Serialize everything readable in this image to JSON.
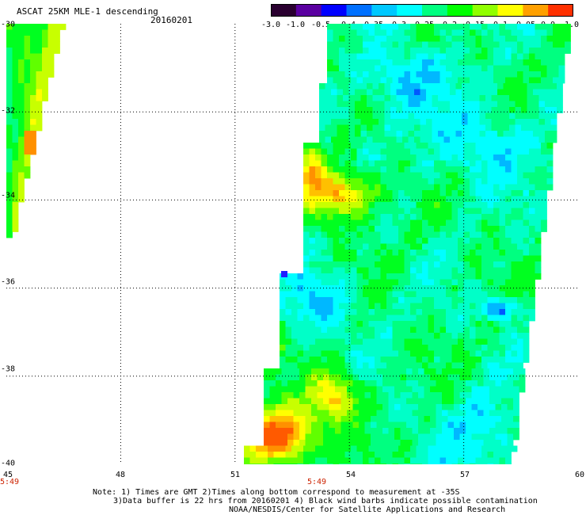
{
  "header": {
    "title": "ASCAT 25KM MLE-1 descending",
    "date": "20160201"
  },
  "colorbar": {
    "labels": [
      "-3.0",
      "-1.0",
      "-0.5",
      "-0.4",
      "-0.35",
      "-0.3",
      "-0.25",
      "-0.2",
      "-0.15",
      "-0.1",
      "-0.05",
      "0.0",
      "1.0"
    ],
    "colors": [
      "#2a0030",
      "#5a00a0",
      "#0000ff",
      "#0070ff",
      "#00c8ff",
      "#00ffff",
      "#00ff80",
      "#00ff00",
      "#90ff00",
      "#ffff00",
      "#ffa000",
      "#ff3000"
    ]
  },
  "axes": {
    "lat_labels": [
      "-30",
      "-32",
      "-34",
      "-36",
      "-38",
      "-40"
    ],
    "lon_labels": [
      "45",
      "48",
      "51",
      "54",
      "57",
      "60"
    ],
    "lat_range": [
      -30,
      -40
    ],
    "lon_range": [
      45,
      60
    ],
    "grid": "dotted"
  },
  "times": [
    "5:49",
    "5:49"
  ],
  "notes": [
    "Note: 1) Times are GMT 2)Times along bottom correspond to measurement at -35S",
    "3)Data buffer is 22 hrs from 20160201 4) Black wind barbs indicate possible contamination",
    "NOAA/NESDIS/Center for Satellite Applications and Research"
  ]
}
